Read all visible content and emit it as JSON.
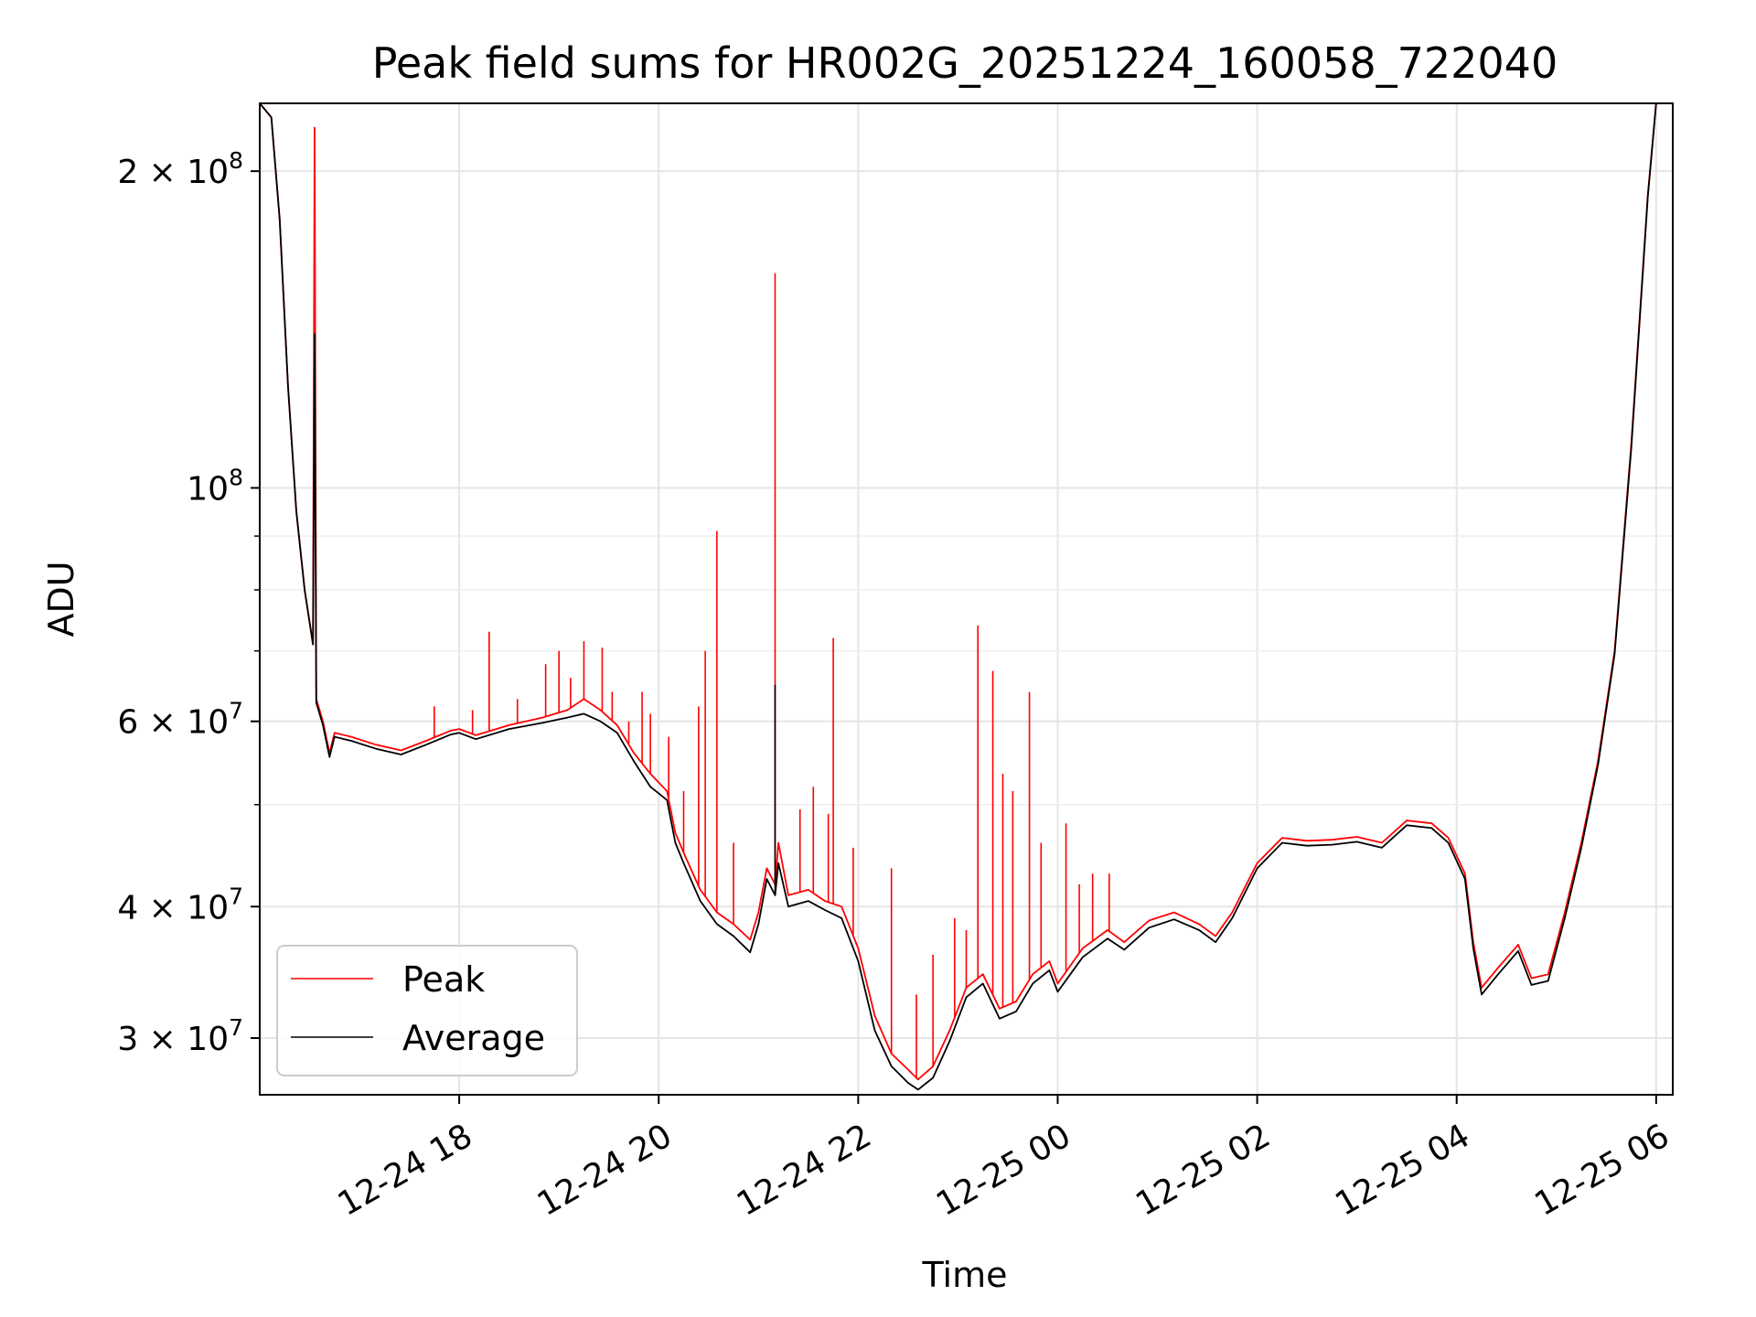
{
  "chart_data": {
    "type": "line",
    "title": "Peak field sums for HR002G_20251224_160058_722040",
    "xlabel": "Time",
    "ylabel": "ADU",
    "yscale": "log",
    "ylim": [
      26500000,
      232000000
    ],
    "xlim": [
      "2025-12-24 16:00",
      "2025-12-25 06:10"
    ],
    "grid": true,
    "legend_position": "lower left",
    "x_ticks": [
      {
        "value": "2025-12-24 18:00",
        "label": "12-24 18"
      },
      {
        "value": "2025-12-24 20:00",
        "label": "12-24 20"
      },
      {
        "value": "2025-12-24 22:00",
        "label": "12-24 22"
      },
      {
        "value": "2025-12-25 00:00",
        "label": "12-25 00"
      },
      {
        "value": "2025-12-25 02:00",
        "label": "12-25 02"
      },
      {
        "value": "2025-12-25 04:00",
        "label": "12-25 04"
      },
      {
        "value": "2025-12-25 06:00",
        "label": "12-25 06"
      }
    ],
    "y_ticks": [
      {
        "value": 30000000,
        "mantissa": "3",
        "exp": "7"
      },
      {
        "value": 40000000,
        "mantissa": "4",
        "exp": "7"
      },
      {
        "value": 60000000,
        "mantissa": "6",
        "exp": "7"
      },
      {
        "value": 100000000,
        "mantissa": "",
        "exp": "8"
      },
      {
        "value": 200000000,
        "mantissa": "2",
        "exp": "8"
      }
    ],
    "y_minor_ticks": [
      50000000,
      70000000,
      80000000,
      90000000
    ],
    "series": [
      {
        "name": "Peak",
        "color": "#ff0000",
        "points": [
          [
            "2025-12-24 16:00",
            232000000
          ],
          [
            "2025-12-24 16:07",
            225000000
          ],
          [
            "2025-12-24 16:12",
            180000000
          ],
          [
            "2025-12-24 16:17",
            125000000
          ],
          [
            "2025-12-24 16:22",
            95000000
          ],
          [
            "2025-12-24 16:27",
            80000000
          ],
          [
            "2025-12-24 16:32",
            71000000
          ],
          [
            "2025-12-24 16:33",
            220000000
          ],
          [
            "2025-12-24 16:34",
            63000000
          ],
          [
            "2025-12-24 16:38",
            60000000
          ],
          [
            "2025-12-24 16:42",
            56000000
          ],
          [
            "2025-12-24 16:45",
            58500000
          ],
          [
            "2025-12-24 16:55",
            58000000
          ],
          [
            "2025-12-24 17:10",
            57000000
          ],
          [
            "2025-12-24 17:25",
            56300000
          ],
          [
            "2025-12-24 17:40",
            57500000
          ],
          [
            "2025-12-24 17:55",
            58800000
          ],
          [
            "2025-12-24 18:00",
            59000000
          ],
          [
            "2025-12-24 18:10",
            58200000
          ],
          [
            "2025-12-24 18:30",
            59500000
          ],
          [
            "2025-12-24 18:50",
            60500000
          ],
          [
            "2025-12-24 19:05",
            61500000
          ],
          [
            "2025-12-24 19:15",
            63000000
          ],
          [
            "2025-12-24 19:25",
            61500000
          ],
          [
            "2025-12-24 19:35",
            59500000
          ],
          [
            "2025-12-24 19:45",
            56000000
          ],
          [
            "2025-12-24 19:55",
            53500000
          ],
          [
            "2025-12-24 20:05",
            51500000
          ],
          [
            "2025-12-24 20:10",
            47000000
          ],
          [
            "2025-12-24 20:15",
            45000000
          ],
          [
            "2025-12-24 20:25",
            41500000
          ],
          [
            "2025-12-24 20:35",
            39500000
          ],
          [
            "2025-12-24 20:45",
            38500000
          ],
          [
            "2025-12-24 20:55",
            37200000
          ],
          [
            "2025-12-24 21:00",
            39500000
          ],
          [
            "2025-12-24 21:05",
            43500000
          ],
          [
            "2025-12-24 21:10",
            42000000
          ],
          [
            "2025-12-24 21:12",
            46000000
          ],
          [
            "2025-12-24 21:18",
            41000000
          ],
          [
            "2025-12-24 21:30",
            41500000
          ],
          [
            "2025-12-24 21:40",
            40500000
          ],
          [
            "2025-12-24 21:50",
            40000000
          ],
          [
            "2025-12-24 22:00",
            36500000
          ],
          [
            "2025-12-24 22:10",
            31500000
          ],
          [
            "2025-12-24 22:20",
            29000000
          ],
          [
            "2025-12-24 22:30",
            28000000
          ],
          [
            "2025-12-24 22:36",
            27400000
          ],
          [
            "2025-12-24 22:45",
            28200000
          ],
          [
            "2025-12-24 22:55",
            30500000
          ],
          [
            "2025-12-24 23:05",
            33500000
          ],
          [
            "2025-12-24 23:15",
            34500000
          ],
          [
            "2025-12-24 23:25",
            32000000
          ],
          [
            "2025-12-24 23:35",
            32500000
          ],
          [
            "2025-12-24 23:45",
            34500000
          ],
          [
            "2025-12-24 23:55",
            35500000
          ],
          [
            "2025-12-25 00:00",
            33800000
          ],
          [
            "2025-12-25 00:15",
            36500000
          ],
          [
            "2025-12-25 00:30",
            38000000
          ],
          [
            "2025-12-25 00:40",
            37000000
          ],
          [
            "2025-12-25 00:55",
            38800000
          ],
          [
            "2025-12-25 01:10",
            39500000
          ],
          [
            "2025-12-25 01:25",
            38500000
          ],
          [
            "2025-12-25 01:35",
            37500000
          ],
          [
            "2025-12-25 01:45",
            39500000
          ],
          [
            "2025-12-25 02:00",
            44000000
          ],
          [
            "2025-12-25 02:15",
            46500000
          ],
          [
            "2025-12-25 02:30",
            46200000
          ],
          [
            "2025-12-25 02:45",
            46300000
          ],
          [
            "2025-12-25 03:00",
            46600000
          ],
          [
            "2025-12-25 03:15",
            46000000
          ],
          [
            "2025-12-25 03:30",
            48300000
          ],
          [
            "2025-12-25 03:45",
            48000000
          ],
          [
            "2025-12-25 03:55",
            46500000
          ],
          [
            "2025-12-25 04:05",
            43000000
          ],
          [
            "2025-12-25 04:10",
            37000000
          ],
          [
            "2025-12-25 04:15",
            33500000
          ],
          [
            "2025-12-25 04:25",
            35000000
          ],
          [
            "2025-12-25 04:37",
            36800000
          ],
          [
            "2025-12-25 04:45",
            34200000
          ],
          [
            "2025-12-25 04:55",
            34500000
          ],
          [
            "2025-12-25 05:05",
            39500000
          ],
          [
            "2025-12-25 05:15",
            46000000
          ],
          [
            "2025-12-25 05:25",
            55000000
          ],
          [
            "2025-12-25 05:35",
            70000000
          ],
          [
            "2025-12-25 05:45",
            110000000
          ],
          [
            "2025-12-25 05:55",
            190000000
          ],
          [
            "2025-12-25 06:00",
            232000000
          ],
          [
            "2025-12-25 06:10",
            232000000
          ]
        ],
        "spikes": [
          [
            "2025-12-24 17:45",
            62000000
          ],
          [
            "2025-12-24 18:08",
            61500000
          ],
          [
            "2025-12-24 18:18",
            73000000
          ],
          [
            "2025-12-24 18:35",
            63000000
          ],
          [
            "2025-12-24 18:52",
            68000000
          ],
          [
            "2025-12-24 19:00",
            70000000
          ],
          [
            "2025-12-24 19:07",
            66000000
          ],
          [
            "2025-12-24 19:15",
            71500000
          ],
          [
            "2025-12-24 19:26",
            70500000
          ],
          [
            "2025-12-24 19:32",
            64000000
          ],
          [
            "2025-12-24 19:42",
            60000000
          ],
          [
            "2025-12-24 19:50",
            64000000
          ],
          [
            "2025-12-24 19:55",
            61000000
          ],
          [
            "2025-12-24 20:06",
            58000000
          ],
          [
            "2025-12-24 20:15",
            51500000
          ],
          [
            "2025-12-24 20:24",
            62000000
          ],
          [
            "2025-12-24 20:28",
            70000000
          ],
          [
            "2025-12-24 20:35",
            91000000
          ],
          [
            "2025-12-24 20:45",
            46000000
          ],
          [
            "2025-12-24 21:10",
            160000000
          ],
          [
            "2025-12-24 21:25",
            49500000
          ],
          [
            "2025-12-24 21:33",
            52000000
          ],
          [
            "2025-12-24 21:42",
            49000000
          ],
          [
            "2025-12-24 21:45",
            72000000
          ],
          [
            "2025-12-24 21:57",
            45500000
          ],
          [
            "2025-12-24 22:20",
            43500000
          ],
          [
            "2025-12-24 22:35",
            33000000
          ],
          [
            "2025-12-24 22:45",
            36000000
          ],
          [
            "2025-12-24 22:58",
            39000000
          ],
          [
            "2025-12-24 23:05",
            38000000
          ],
          [
            "2025-12-24 23:12",
            74000000
          ],
          [
            "2025-12-24 23:21",
            67000000
          ],
          [
            "2025-12-24 23:27",
            53500000
          ],
          [
            "2025-12-24 23:33",
            51500000
          ],
          [
            "2025-12-24 23:43",
            64000000
          ],
          [
            "2025-12-24 23:50",
            46000000
          ],
          [
            "2025-12-25 00:05",
            48000000
          ],
          [
            "2025-12-25 00:13",
            42000000
          ],
          [
            "2025-12-25 00:21",
            43000000
          ],
          [
            "2025-12-25 00:31",
            43000000
          ]
        ]
      },
      {
        "name": "Average",
        "color": "#000000",
        "points": [
          [
            "2025-12-24 16:00",
            232000000
          ],
          [
            "2025-12-24 16:07",
            225000000
          ],
          [
            "2025-12-24 16:12",
            180000000
          ],
          [
            "2025-12-24 16:17",
            125000000
          ],
          [
            "2025-12-24 16:22",
            95000000
          ],
          [
            "2025-12-24 16:27",
            80000000
          ],
          [
            "2025-12-24 16:32",
            71000000
          ],
          [
            "2025-12-24 16:33",
            140000000
          ],
          [
            "2025-12-24 16:34",
            62500000
          ],
          [
            "2025-12-24 16:38",
            59500000
          ],
          [
            "2025-12-24 16:42",
            55500000
          ],
          [
            "2025-12-24 16:45",
            58000000
          ],
          [
            "2025-12-24 16:55",
            57500000
          ],
          [
            "2025-12-24 17:10",
            56500000
          ],
          [
            "2025-12-24 17:25",
            55800000
          ],
          [
            "2025-12-24 17:40",
            57000000
          ],
          [
            "2025-12-24 17:55",
            58300000
          ],
          [
            "2025-12-24 18:00",
            58500000
          ],
          [
            "2025-12-24 18:10",
            57700000
          ],
          [
            "2025-12-24 18:30",
            59000000
          ],
          [
            "2025-12-24 18:50",
            59800000
          ],
          [
            "2025-12-24 19:05",
            60500000
          ],
          [
            "2025-12-24 19:15",
            61000000
          ],
          [
            "2025-12-24 19:25",
            60000000
          ],
          [
            "2025-12-24 19:35",
            58500000
          ],
          [
            "2025-12-24 19:45",
            55000000
          ],
          [
            "2025-12-24 19:55",
            52000000
          ],
          [
            "2025-12-24 20:05",
            50500000
          ],
          [
            "2025-12-24 20:10",
            46000000
          ],
          [
            "2025-12-24 20:15",
            44000000
          ],
          [
            "2025-12-24 20:25",
            40500000
          ],
          [
            "2025-12-24 20:35",
            38500000
          ],
          [
            "2025-12-24 20:45",
            37500000
          ],
          [
            "2025-12-24 20:55",
            36200000
          ],
          [
            "2025-12-24 21:00",
            38500000
          ],
          [
            "2025-12-24 21:05",
            42500000
          ],
          [
            "2025-12-24 21:10",
            41000000
          ],
          [
            "2025-12-24 21:12",
            44000000
          ],
          [
            "2025-12-24 21:18",
            40000000
          ],
          [
            "2025-12-24 21:30",
            40500000
          ],
          [
            "2025-12-24 21:40",
            39700000
          ],
          [
            "2025-12-24 21:50",
            39000000
          ],
          [
            "2025-12-24 22:00",
            35500000
          ],
          [
            "2025-12-24 22:10",
            30500000
          ],
          [
            "2025-12-24 22:20",
            28200000
          ],
          [
            "2025-12-24 22:30",
            27200000
          ],
          [
            "2025-12-24 22:36",
            26800000
          ],
          [
            "2025-12-24 22:45",
            27500000
          ],
          [
            "2025-12-24 22:55",
            29800000
          ],
          [
            "2025-12-24 23:05",
            32800000
          ],
          [
            "2025-12-24 23:15",
            33800000
          ],
          [
            "2025-12-24 23:25",
            31300000
          ],
          [
            "2025-12-24 23:35",
            31800000
          ],
          [
            "2025-12-24 23:45",
            33800000
          ],
          [
            "2025-12-24 23:55",
            34800000
          ],
          [
            "2025-12-25 00:00",
            33200000
          ],
          [
            "2025-12-25 00:15",
            35800000
          ],
          [
            "2025-12-25 00:30",
            37300000
          ],
          [
            "2025-12-25 00:40",
            36400000
          ],
          [
            "2025-12-25 00:55",
            38200000
          ],
          [
            "2025-12-25 01:10",
            38900000
          ],
          [
            "2025-12-25 01:25",
            38000000
          ],
          [
            "2025-12-25 01:35",
            37000000
          ],
          [
            "2025-12-25 01:45",
            39000000
          ],
          [
            "2025-12-25 02:00",
            43500000
          ],
          [
            "2025-12-25 02:15",
            46000000
          ],
          [
            "2025-12-25 02:30",
            45700000
          ],
          [
            "2025-12-25 02:45",
            45800000
          ],
          [
            "2025-12-25 03:00",
            46100000
          ],
          [
            "2025-12-25 03:15",
            45500000
          ],
          [
            "2025-12-25 03:30",
            47800000
          ],
          [
            "2025-12-25 03:45",
            47500000
          ],
          [
            "2025-12-25 03:55",
            46000000
          ],
          [
            "2025-12-25 04:05",
            42500000
          ],
          [
            "2025-12-25 04:10",
            36500000
          ],
          [
            "2025-12-25 04:15",
            33000000
          ],
          [
            "2025-12-25 04:25",
            34500000
          ],
          [
            "2025-12-25 04:37",
            36300000
          ],
          [
            "2025-12-25 04:45",
            33700000
          ],
          [
            "2025-12-25 04:55",
            34000000
          ],
          [
            "2025-12-25 05:05",
            39000000
          ],
          [
            "2025-12-25 05:15",
            45500000
          ],
          [
            "2025-12-25 05:25",
            54500000
          ],
          [
            "2025-12-25 05:35",
            69500000
          ],
          [
            "2025-12-25 05:45",
            109000000
          ],
          [
            "2025-12-25 05:55",
            189000000
          ],
          [
            "2025-12-25 06:00",
            232000000
          ],
          [
            "2025-12-25 06:10",
            232000000
          ]
        ],
        "spikes": [
          [
            "2025-12-24 21:10",
            65000000
          ]
        ]
      }
    ]
  }
}
